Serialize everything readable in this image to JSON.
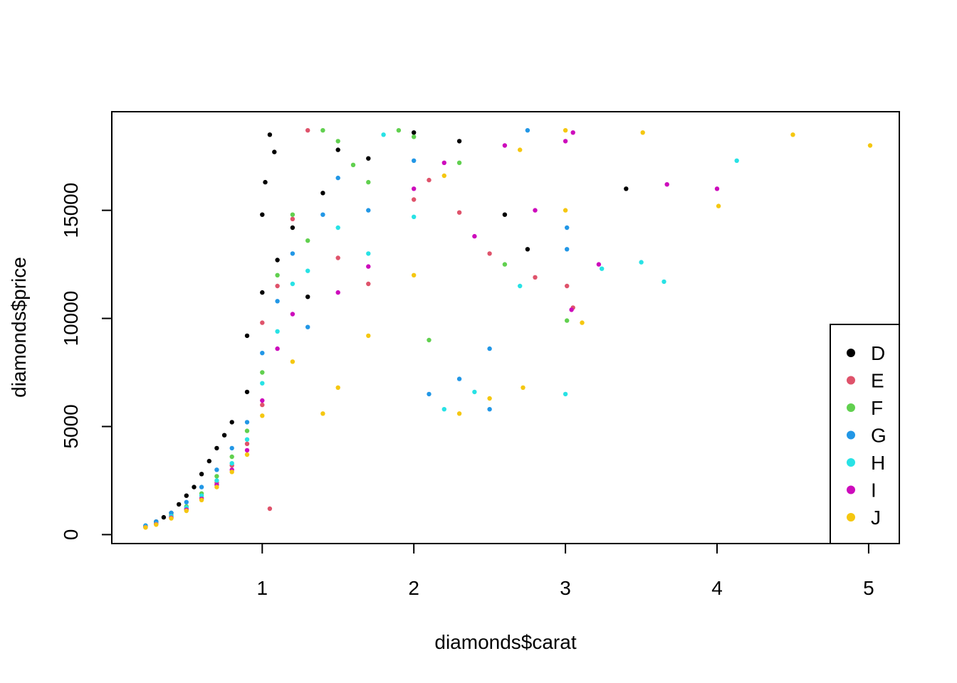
{
  "chart_data": {
    "type": "scatter",
    "xlabel": "diamonds$carat",
    "ylabel": "diamonds$price",
    "xlim": [
      0.2,
      5.01
    ],
    "ylim": [
      326,
      18823
    ],
    "x_ticks": [
      "1",
      "2",
      "3",
      "4",
      "5"
    ],
    "y_ticks": [
      "0",
      "5000",
      "10000",
      "15000"
    ],
    "x_tick_values": [
      1,
      2,
      3,
      4,
      5
    ],
    "y_tick_values": [
      0,
      5000,
      10000,
      15000
    ],
    "grid": false,
    "legend_position": "bottom-right",
    "series": [
      {
        "name": "D",
        "color": "#000000",
        "points": [
          [
            0.23,
            400
          ],
          [
            0.3,
            600
          ],
          [
            0.35,
            800
          ],
          [
            0.4,
            1000
          ],
          [
            0.45,
            1400
          ],
          [
            0.5,
            1800
          ],
          [
            0.55,
            2200
          ],
          [
            0.6,
            2800
          ],
          [
            0.65,
            3400
          ],
          [
            0.7,
            4000
          ],
          [
            0.75,
            4600
          ],
          [
            0.8,
            5200
          ],
          [
            0.9,
            6600
          ],
          [
            0.9,
            9200
          ],
          [
            1.0,
            11200
          ],
          [
            1.0,
            14800
          ],
          [
            1.02,
            16300
          ],
          [
            1.05,
            18500
          ],
          [
            1.08,
            17700
          ],
          [
            1.1,
            12700
          ],
          [
            1.2,
            14200
          ],
          [
            1.3,
            11000
          ],
          [
            1.4,
            15800
          ],
          [
            1.5,
            17800
          ],
          [
            1.7,
            17400
          ],
          [
            2.0,
            18600
          ],
          [
            2.3,
            18200
          ],
          [
            2.6,
            14800
          ],
          [
            2.75,
            13200
          ],
          [
            3.4,
            16000
          ]
        ]
      },
      {
        "name": "E",
        "color": "#DF536B",
        "points": [
          [
            0.23,
            350
          ],
          [
            0.3,
            500
          ],
          [
            0.4,
            800
          ],
          [
            0.5,
            1200
          ],
          [
            0.6,
            1700
          ],
          [
            0.7,
            2400
          ],
          [
            0.8,
            3200
          ],
          [
            0.9,
            4200
          ],
          [
            1.0,
            6000
          ],
          [
            1.0,
            9800
          ],
          [
            1.05,
            1200
          ],
          [
            1.1,
            11500
          ],
          [
            1.2,
            14600
          ],
          [
            1.3,
            18700
          ],
          [
            1.5,
            12800
          ],
          [
            1.7,
            11600
          ],
          [
            2.0,
            15500
          ],
          [
            2.1,
            16400
          ],
          [
            2.3,
            14900
          ],
          [
            2.5,
            13000
          ],
          [
            2.8,
            11900
          ],
          [
            3.01,
            11500
          ],
          [
            3.05,
            10500
          ]
        ]
      },
      {
        "name": "F",
        "color": "#61D04F",
        "points": [
          [
            0.23,
            380
          ],
          [
            0.3,
            550
          ],
          [
            0.4,
            900
          ],
          [
            0.5,
            1300
          ],
          [
            0.6,
            1900
          ],
          [
            0.7,
            2700
          ],
          [
            0.8,
            3600
          ],
          [
            0.9,
            4800
          ],
          [
            1.0,
            7500
          ],
          [
            1.1,
            12000
          ],
          [
            1.2,
            14800
          ],
          [
            1.3,
            13600
          ],
          [
            1.4,
            18700
          ],
          [
            1.5,
            18200
          ],
          [
            1.6,
            17100
          ],
          [
            1.7,
            16300
          ],
          [
            1.9,
            18700
          ],
          [
            2.0,
            18400
          ],
          [
            2.1,
            9000
          ],
          [
            2.3,
            17200
          ],
          [
            2.6,
            12500
          ],
          [
            3.01,
            9900
          ]
        ]
      },
      {
        "name": "G",
        "color": "#2297E6",
        "points": [
          [
            0.23,
            420
          ],
          [
            0.3,
            600
          ],
          [
            0.4,
            1000
          ],
          [
            0.5,
            1500
          ],
          [
            0.6,
            2200
          ],
          [
            0.7,
            3000
          ],
          [
            0.8,
            4000
          ],
          [
            0.9,
            5200
          ],
          [
            1.0,
            8400
          ],
          [
            1.1,
            10800
          ],
          [
            1.2,
            13000
          ],
          [
            1.3,
            9600
          ],
          [
            1.4,
            14800
          ],
          [
            1.5,
            16500
          ],
          [
            1.7,
            15000
          ],
          [
            2.0,
            17300
          ],
          [
            2.1,
            6500
          ],
          [
            2.3,
            7200
          ],
          [
            2.5,
            8600
          ],
          [
            2.5,
            5800
          ],
          [
            2.75,
            18700
          ],
          [
            3.01,
            14200
          ],
          [
            3.01,
            13200
          ]
        ]
      },
      {
        "name": "H",
        "color": "#28E2E5",
        "points": [
          [
            0.23,
            360
          ],
          [
            0.3,
            500
          ],
          [
            0.4,
            850
          ],
          [
            0.5,
            1250
          ],
          [
            0.6,
            1800
          ],
          [
            0.7,
            2500
          ],
          [
            0.8,
            3300
          ],
          [
            0.9,
            4400
          ],
          [
            1.0,
            7000
          ],
          [
            1.1,
            9400
          ],
          [
            1.2,
            11600
          ],
          [
            1.3,
            12200
          ],
          [
            1.5,
            14200
          ],
          [
            1.7,
            13000
          ],
          [
            1.8,
            18500
          ],
          [
            2.0,
            14700
          ],
          [
            2.2,
            5800
          ],
          [
            2.4,
            6600
          ],
          [
            2.7,
            11500
          ],
          [
            3.0,
            6500
          ],
          [
            3.5,
            12600
          ],
          [
            3.65,
            11700
          ],
          [
            4.13,
            17300
          ],
          [
            3.24,
            12300
          ]
        ]
      },
      {
        "name": "I",
        "color": "#CD0BBC",
        "points": [
          [
            0.23,
            340
          ],
          [
            0.3,
            480
          ],
          [
            0.4,
            780
          ],
          [
            0.5,
            1150
          ],
          [
            0.6,
            1650
          ],
          [
            0.7,
            2300
          ],
          [
            0.8,
            3000
          ],
          [
            0.9,
            3900
          ],
          [
            1.0,
            6200
          ],
          [
            1.1,
            8600
          ],
          [
            1.2,
            10200
          ],
          [
            1.5,
            11200
          ],
          [
            1.7,
            12400
          ],
          [
            2.0,
            16000
          ],
          [
            2.2,
            17200
          ],
          [
            2.4,
            13800
          ],
          [
            2.6,
            18000
          ],
          [
            2.8,
            15000
          ],
          [
            3.0,
            18200
          ],
          [
            3.04,
            10400
          ],
          [
            3.22,
            12500
          ],
          [
            3.67,
            16200
          ],
          [
            4.0,
            16000
          ],
          [
            3.05,
            18600
          ]
        ]
      },
      {
        "name": "J",
        "color": "#F5C710",
        "points": [
          [
            0.23,
            330
          ],
          [
            0.3,
            460
          ],
          [
            0.4,
            750
          ],
          [
            0.5,
            1100
          ],
          [
            0.6,
            1600
          ],
          [
            0.7,
            2200
          ],
          [
            0.8,
            2900
          ],
          [
            0.9,
            3700
          ],
          [
            1.0,
            5500
          ],
          [
            1.2,
            8000
          ],
          [
            1.4,
            5600
          ],
          [
            1.5,
            6800
          ],
          [
            1.7,
            9200
          ],
          [
            2.0,
            12000
          ],
          [
            2.2,
            16600
          ],
          [
            2.3,
            5600
          ],
          [
            2.5,
            6300
          ],
          [
            2.7,
            17800
          ],
          [
            2.72,
            6800
          ],
          [
            3.0,
            18700
          ],
          [
            3.0,
            15000
          ],
          [
            3.11,
            9800
          ],
          [
            3.51,
            18600
          ],
          [
            4.01,
            15200
          ],
          [
            4.5,
            18500
          ],
          [
            5.01,
            18000
          ]
        ]
      }
    ]
  }
}
